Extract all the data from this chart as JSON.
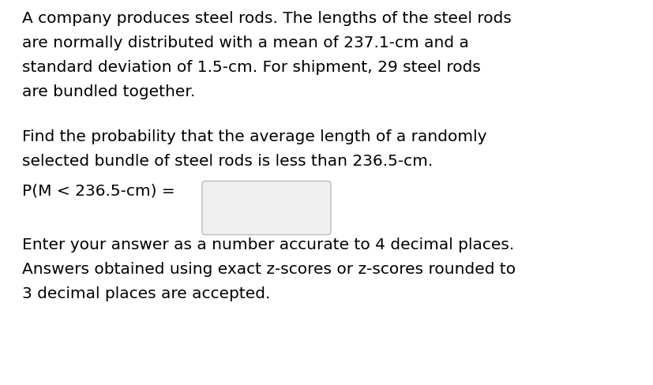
{
  "background_color": "#ffffff",
  "text_color": "#000000",
  "font_size_main": 14.5,
  "paragraph1_lines": [
    "A company produces steel rods. The lengths of the steel rods",
    "are normally distributed with a mean of 237.1-cm and a",
    "standard deviation of 1.5-cm. For shipment, 29 steel rods",
    "are bundled together."
  ],
  "paragraph2_lines": [
    "Find the probability that the average length of a randomly",
    "selected bundle of steel rods is less than 236.5-cm."
  ],
  "equation_line": "P(M < 236.5-cm) =",
  "paragraph3_lines": [
    "Enter your answer as a number accurate to 4 decimal places.",
    "Answers obtained using exact z-scores or z-scores rounded to",
    "3 decimal places are accepted."
  ]
}
